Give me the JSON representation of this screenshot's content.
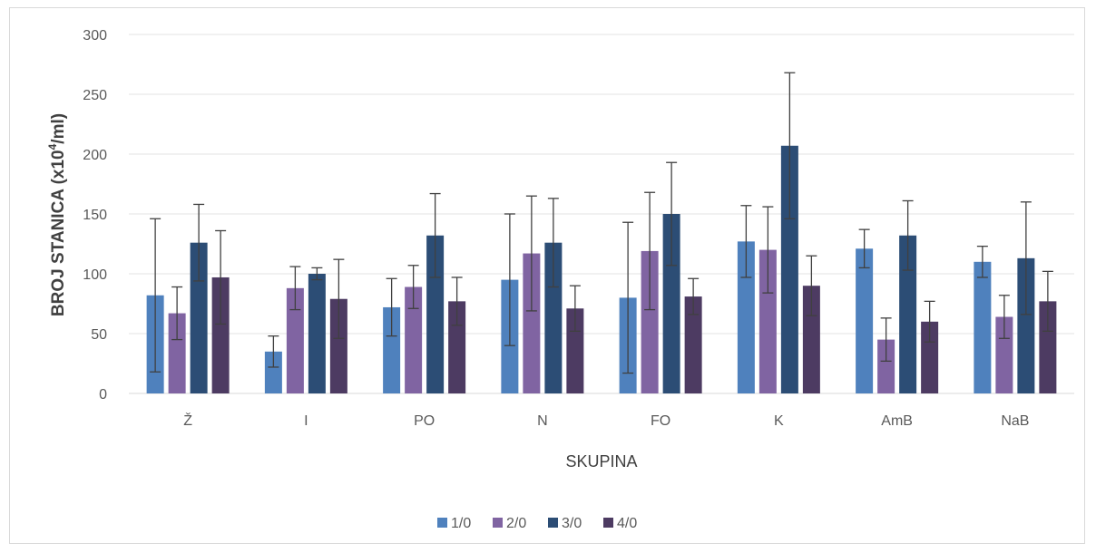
{
  "chart_data": {
    "type": "bar",
    "xlabel": "SKUPINA",
    "ylabel": {
      "pre": "BROJ STANICA (x10",
      "sup": "4",
      "post": "/ml)"
    },
    "ylim": [
      0,
      300
    ],
    "yticks": [
      0,
      50,
      100,
      150,
      200,
      250,
      300
    ],
    "grid": true,
    "legend_position": "bottom",
    "categories": [
      "Ž",
      "I",
      "PO",
      "N",
      "FO",
      "K",
      "AmB",
      "NaB"
    ],
    "series": [
      {
        "name": "1/0",
        "color": "#4f81bd",
        "values": [
          82,
          35,
          72,
          95,
          80,
          127,
          121,
          110
        ],
        "errors": [
          64,
          13,
          24,
          55,
          63,
          30,
          16,
          13
        ]
      },
      {
        "name": "2/0",
        "color": "#8064a2",
        "values": [
          67,
          88,
          89,
          117,
          119,
          120,
          45,
          64
        ],
        "errors": [
          22,
          18,
          18,
          48,
          49,
          36,
          18,
          18
        ]
      },
      {
        "name": "3/0",
        "color": "#2c4d75",
        "values": [
          126,
          100,
          132,
          126,
          150,
          207,
          132,
          113
        ],
        "errors": [
          32,
          5,
          35,
          37,
          43,
          61,
          29,
          47
        ]
      },
      {
        "name": "4/0",
        "color": "#4d3b62",
        "values": [
          97,
          79,
          77,
          71,
          81,
          90,
          60,
          77
        ],
        "errors": [
          39,
          33,
          20,
          19,
          15,
          25,
          17,
          25
        ]
      }
    ]
  }
}
